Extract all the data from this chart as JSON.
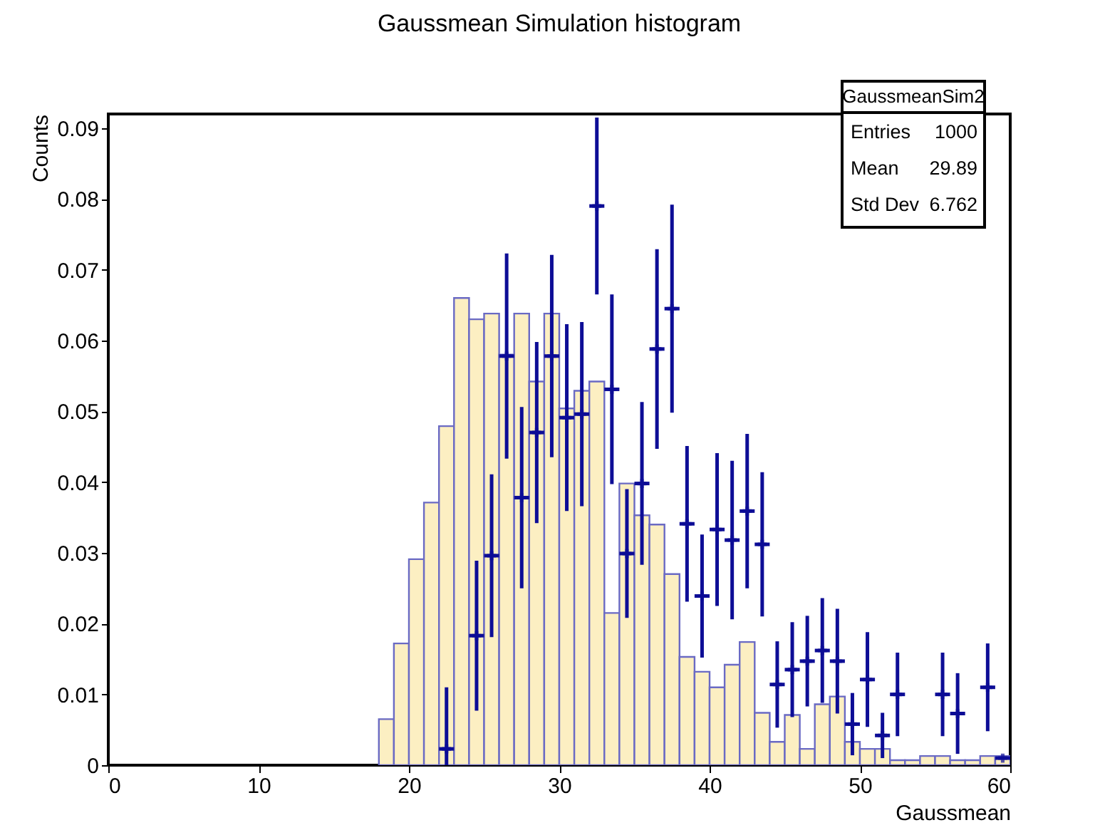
{
  "chart_data": {
    "type": "histogram",
    "title": "Gaussmean Simulation histogram",
    "xlabel": "Gaussmean",
    "ylabel": "Counts",
    "xlim": [
      0,
      60
    ],
    "ylim": [
      0,
      0.092
    ],
    "xticks": [
      0,
      10,
      20,
      30,
      40,
      50,
      60
    ],
    "yticks": [
      0,
      0.01,
      0.02,
      0.03,
      0.04,
      0.05,
      0.06,
      0.07,
      0.08,
      0.09
    ],
    "grid": false,
    "annotations": [
      "GaussmeanSim2",
      "Entries 1000",
      "Mean 29.89",
      "Std Dev 6.762"
    ],
    "bins": [
      18,
      19,
      20,
      21,
      22,
      23,
      24,
      25,
      26,
      27,
      28,
      29,
      30,
      31,
      32,
      33,
      34,
      35,
      36,
      37,
      38,
      39,
      40,
      41,
      42,
      43,
      44,
      45,
      46,
      47,
      48,
      49,
      50,
      51,
      52,
      53,
      54,
      55,
      56,
      57,
      58,
      59,
      60
    ],
    "series": [
      {
        "type": "histogram",
        "color": "#fcefc2",
        "values": [
          0.0065,
          0.0172,
          0.0291,
          0.0371,
          0.0479,
          0.066,
          0.063,
          0.0638,
          0.058,
          0.0638,
          0.0542,
          0.0638,
          0.0504,
          0.0529,
          0.0542,
          0.0215,
          0.0398,
          0.0353,
          0.034,
          0.027,
          0.0153,
          0.0132,
          0.011,
          0.0142,
          0.0174,
          0.0074,
          0.0033,
          0.0071,
          0.0023,
          0.0086,
          0.0097,
          0.0033,
          0.0023,
          0.0023,
          0.0007,
          0.0007,
          0.0013,
          0.0013,
          0.0007,
          0.0007,
          0.0013,
          0.0013
        ]
      },
      {
        "type": "scatter",
        "color": "#0d0d96",
        "marker": "cross",
        "x": [
          22.5,
          24.5,
          25.5,
          26.5,
          27.5,
          28.5,
          29.5,
          30.5,
          31.5,
          32.5,
          33.5,
          34.5,
          35.5,
          36.5,
          37.5,
          38.5,
          39.5,
          40.5,
          41.5,
          42.5,
          43.5,
          44.5,
          45.5,
          46.5,
          47.5,
          48.5,
          49.5,
          50.5,
          51.5,
          52.5,
          55.5,
          56.5,
          58.5,
          59.5
        ],
        "values": [
          0.0023,
          0.0183,
          0.0296,
          0.0578,
          0.0378,
          0.047,
          0.0578,
          0.0491,
          0.0496,
          0.079,
          0.0531,
          0.0299,
          0.0398,
          0.0588,
          0.0645,
          0.0341,
          0.0239,
          0.0333,
          0.0318,
          0.0359,
          0.0312,
          0.0114,
          0.0135,
          0.0147,
          0.0162,
          0.0147,
          0.0058,
          0.0121,
          0.0042,
          0.01,
          0.01,
          0.0073,
          0.011,
          0.001
        ],
        "errors": [
          [
            0,
            0.011
          ],
          0.0106,
          0.0115,
          0.0145,
          0.0128,
          0.0128,
          0.0143,
          0.0132,
          0.013,
          0.0125,
          0.0134,
          0.0091,
          0.0115,
          0.0141,
          0.0147,
          0.011,
          0.0087,
          0.0108,
          0.0112,
          0.0109,
          0.0102,
          0.0061,
          0.0067,
          0.0064,
          0.0074,
          0.0074,
          0.0044,
          0.0067,
          0.0032,
          0.0059,
          0.0059,
          0.0057,
          0.0062,
          null
        ],
        "xerrors": [
          0.5,
          0.5,
          0.5,
          0.5,
          0.5,
          0.5,
          0.5,
          0.5,
          0.5,
          0.5,
          0.5,
          0.5,
          0.5,
          0.5,
          0.5,
          0.5,
          0.5,
          0.5,
          0.5,
          0.5,
          0.5,
          0.5,
          0.5,
          0.5,
          0.5,
          0.5,
          0.5,
          0.5,
          0.5,
          0.5,
          0.5,
          0.5,
          0.5,
          0.5
        ]
      }
    ]
  }
}
